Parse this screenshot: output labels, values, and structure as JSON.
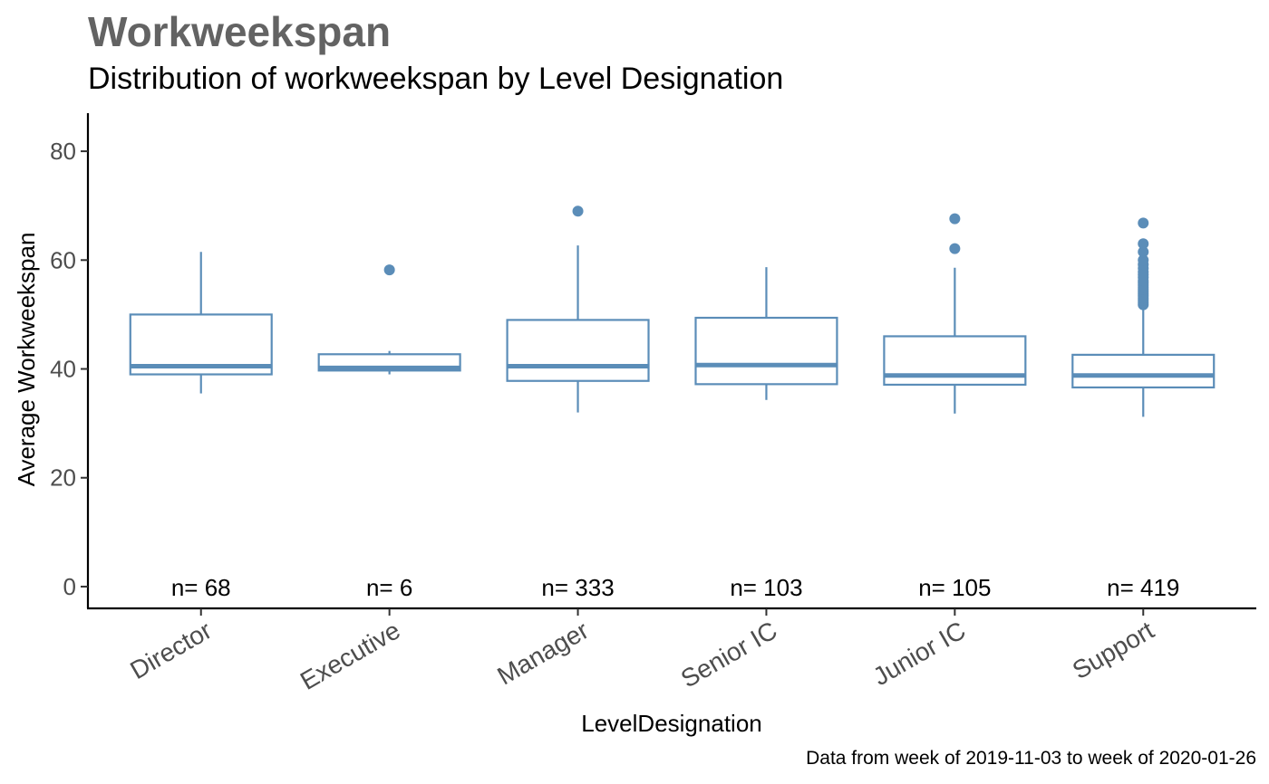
{
  "chart_data": {
    "type": "boxplot",
    "title": "Workweekspan",
    "subtitle": "Distribution of workweekspan by Level Designation",
    "xlabel": "LevelDesignation",
    "ylabel": "Average Workweekspan",
    "caption": "Data from week of 2019-11-03 to week of 2020-01-26",
    "ylim": [
      -4,
      87
    ],
    "yticks": [
      0,
      20,
      40,
      60,
      80
    ],
    "grid": false,
    "legend": "none",
    "box_color": "#5B8DB8",
    "categories": [
      "Director",
      "Executive",
      "Manager",
      "Senior IC",
      "Junior IC",
      "Support"
    ],
    "boxes": [
      {
        "category": "Director",
        "whisker_low": 35.5,
        "q1": 39.0,
        "median": 40.5,
        "q3": 50.0,
        "whisker_high": 61.5,
        "outliers": [],
        "count_label": "n= 68"
      },
      {
        "category": "Executive",
        "whisker_low": 39.0,
        "q1": 39.7,
        "median": 40.2,
        "q3": 42.7,
        "whisker_high": 43.3,
        "outliers": [
          58.2
        ],
        "count_label": "n= 6"
      },
      {
        "category": "Manager",
        "whisker_low": 32.0,
        "q1": 37.8,
        "median": 40.5,
        "q3": 49.0,
        "whisker_high": 62.7,
        "outliers": [
          69.0
        ],
        "count_label": "n= 333"
      },
      {
        "category": "Senior IC",
        "whisker_low": 34.3,
        "q1": 37.2,
        "median": 40.7,
        "q3": 49.4,
        "whisker_high": 58.7,
        "outliers": [],
        "count_label": "n= 103"
      },
      {
        "category": "Junior IC",
        "whisker_low": 31.8,
        "q1": 37.1,
        "median": 38.8,
        "q3": 46.0,
        "whisker_high": 58.6,
        "outliers": [
          62.1,
          67.6
        ],
        "count_label": "n= 105"
      },
      {
        "category": "Support",
        "whisker_low": 31.2,
        "q1": 36.6,
        "median": 38.8,
        "q3": 42.6,
        "whisker_high": 51.5,
        "outliers": [
          51.8,
          52.2,
          52.6,
          53.0,
          53.4,
          53.8,
          54.2,
          54.6,
          55.0,
          55.4,
          55.8,
          56.2,
          56.8,
          57.3,
          57.8,
          58.5,
          59.2,
          60.0,
          61.5,
          63.0,
          66.8
        ],
        "count_label": "n= 419"
      }
    ]
  }
}
